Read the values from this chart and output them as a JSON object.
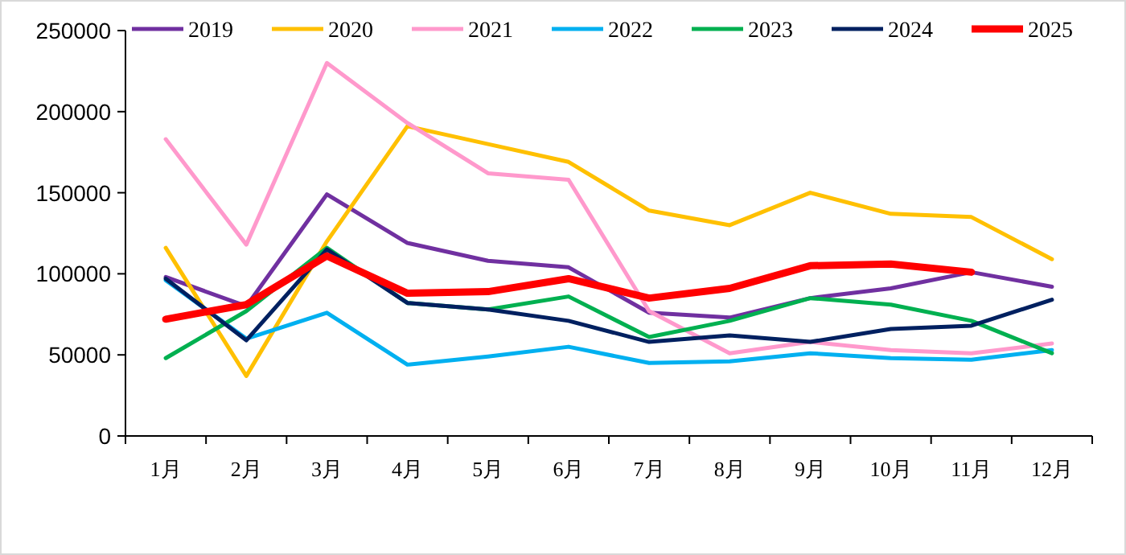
{
  "chart_data": {
    "type": "line",
    "categories": [
      "1月",
      "2月",
      "3月",
      "4月",
      "5月",
      "6月",
      "7月",
      "8月",
      "9月",
      "10月",
      "11月",
      "12月"
    ],
    "series": [
      {
        "name": "2019",
        "color": "#7030a0",
        "values": [
          98000,
          80000,
          149000,
          119000,
          108000,
          104000,
          76000,
          73000,
          85000,
          91000,
          101000,
          92000
        ]
      },
      {
        "name": "2020",
        "color": "#ffc000",
        "values": [
          116000,
          37000,
          120000,
          191000,
          180000,
          169000,
          139000,
          130000,
          150000,
          137000,
          135000,
          109000
        ]
      },
      {
        "name": "2021",
        "color": "#ff99cc",
        "values": [
          183000,
          118000,
          230000,
          193000,
          162000,
          158000,
          77000,
          51000,
          58000,
          53000,
          51000,
          57000
        ]
      },
      {
        "name": "2022",
        "color": "#00b0f0",
        "values": [
          96000,
          60000,
          76000,
          44000,
          49000,
          55000,
          45000,
          46000,
          51000,
          48000,
          47000,
          53000
        ]
      },
      {
        "name": "2023",
        "color": "#00b050",
        "values": [
          48000,
          77000,
          116000,
          82000,
          78000,
          86000,
          61000,
          71000,
          85000,
          81000,
          71000,
          51000
        ]
      },
      {
        "name": "2024",
        "color": "#002060",
        "values": [
          97000,
          59000,
          115000,
          82000,
          78000,
          71000,
          58000,
          62000,
          58000,
          66000,
          68000,
          84000
        ]
      },
      {
        "name": "2025",
        "color": "#ff0000",
        "values": [
          72000,
          81000,
          111000,
          88000,
          89000,
          97000,
          85000,
          91000,
          105000,
          106000,
          101000,
          null
        ]
      }
    ],
    "ylim": [
      0,
      250000
    ],
    "yticks": [
      0,
      50000,
      100000,
      150000,
      200000,
      250000
    ],
    "grid": false,
    "legend": "top",
    "marker": "none",
    "line_style": "solid"
  }
}
